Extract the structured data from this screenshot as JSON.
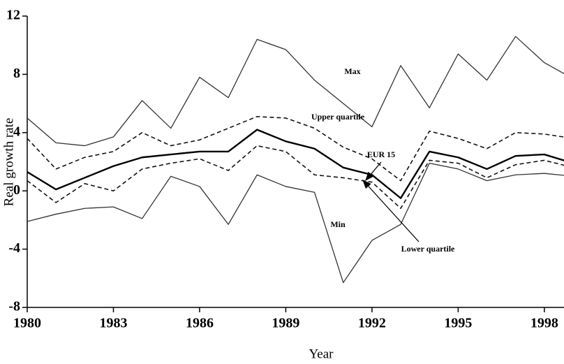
{
  "chart_data": {
    "type": "line",
    "x_label": "Year",
    "y_label": "Real growth rate",
    "x": [
      1980,
      1981,
      1982,
      1983,
      1984,
      1985,
      1986,
      1987,
      1988,
      1989,
      1990,
      1991,
      1992,
      1993,
      1994,
      1995,
      1996,
      1997,
      1998,
      1999
    ],
    "series": [
      {
        "name": "Max",
        "color": "#333333",
        "dash": false,
        "width": 1.3,
        "values": [
          5.0,
          3.3,
          3.1,
          3.7,
          6.2,
          4.3,
          7.8,
          6.4,
          10.4,
          9.7,
          7.6,
          6.0,
          4.4,
          8.6,
          5.7,
          9.4,
          7.6,
          10.6,
          8.8,
          7.7
        ]
      },
      {
        "name": "Upper quartile",
        "color": "#111111",
        "dash": true,
        "width": 1.6,
        "values": [
          3.6,
          1.5,
          2.3,
          2.7,
          4.0,
          3.1,
          3.5,
          4.3,
          5.1,
          5.0,
          4.3,
          3.0,
          2.2,
          0.7,
          4.1,
          3.6,
          2.9,
          4.0,
          3.9,
          3.6
        ]
      },
      {
        "name": "EUR 15",
        "color": "#000000",
        "dash": false,
        "width": 2.4,
        "values": [
          1.3,
          0.1,
          0.9,
          1.7,
          2.3,
          2.5,
          2.7,
          2.7,
          4.2,
          3.4,
          2.9,
          1.6,
          1.1,
          -0.5,
          2.7,
          2.3,
          1.5,
          2.4,
          2.5,
          1.9
        ]
      },
      {
        "name": "Lower quartile",
        "color": "#111111",
        "dash": true,
        "width": 1.6,
        "values": [
          0.7,
          -0.8,
          0.5,
          0.0,
          1.5,
          1.9,
          2.2,
          1.4,
          3.1,
          2.7,
          1.1,
          0.9,
          0.6,
          -1.2,
          2.1,
          1.9,
          0.9,
          1.8,
          2.1,
          1.6
        ]
      },
      {
        "name": "Min",
        "color": "#333333",
        "dash": false,
        "width": 1.3,
        "values": [
          -2.1,
          -1.6,
          -1.2,
          -1.1,
          -1.9,
          1.0,
          0.3,
          -2.3,
          1.1,
          0.3,
          -0.1,
          -6.3,
          -3.4,
          -2.3,
          1.9,
          1.5,
          0.7,
          1.1,
          1.2,
          1.0
        ]
      }
    ],
    "xlim": [
      1980,
      1999
    ],
    "xticks": [
      1980,
      1983,
      1986,
      1989,
      1992,
      1995,
      1998
    ],
    "ylim": [
      -8,
      12
    ],
    "yticks": [
      -8,
      -4,
      0,
      4,
      8,
      12
    ]
  }
}
